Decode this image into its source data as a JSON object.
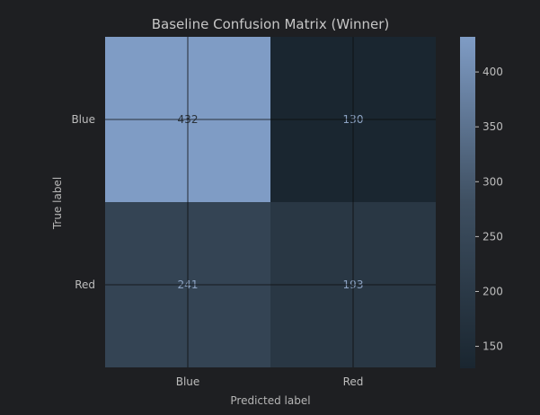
{
  "chart_data": {
    "type": "heatmap",
    "title": "Baseline Confusion Matrix (Winner)",
    "xlabel": "Predicted label",
    "ylabel": "True label",
    "x_categories": [
      "Blue",
      "Red"
    ],
    "y_categories": [
      "Blue",
      "Red"
    ],
    "matrix": [
      [
        432,
        130
      ],
      [
        241,
        193
      ]
    ],
    "colorbar": {
      "range": [
        130,
        432
      ],
      "ticks": [
        150,
        200,
        250,
        300,
        350,
        400
      ]
    },
    "grid": true
  },
  "colors": {
    "background": "#1e1f22",
    "low": "#1a2630",
    "high": "#7f9cc5",
    "text_on_dark": "#8ea4c4",
    "text_on_light": "#2b333b",
    "grid": "#0d0d0d"
  }
}
